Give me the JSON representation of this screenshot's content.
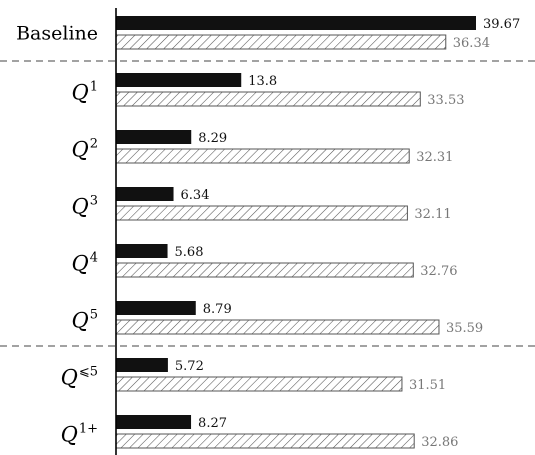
{
  "chart_data": {
    "type": "bar",
    "orientation": "horizontal",
    "categories": [
      {
        "base": "Baseline",
        "sup": ""
      },
      {
        "base": "Q",
        "sup": "1"
      },
      {
        "base": "Q",
        "sup": "2"
      },
      {
        "base": "Q",
        "sup": "3"
      },
      {
        "base": "Q",
        "sup": "4"
      },
      {
        "base": "Q",
        "sup": "5"
      },
      {
        "base": "Q",
        "sup": "⩽5"
      },
      {
        "base": "Q",
        "sup": "1+"
      }
    ],
    "series": [
      {
        "style": "solid",
        "color": "#111111",
        "values": [
          39.67,
          13.8,
          8.29,
          6.34,
          5.68,
          8.79,
          5.72,
          8.27
        ],
        "labels": [
          "39.67",
          "13.8",
          "8.29",
          "6.34",
          "5.68",
          "8.79",
          "5.72",
          "8.27"
        ]
      },
      {
        "style": "hatched",
        "color": "#555555",
        "values": [
          36.34,
          33.53,
          32.31,
          32.11,
          32.76,
          35.59,
          31.51,
          32.86
        ],
        "labels": [
          "36.34",
          "33.53",
          "32.31",
          "32.11",
          "32.76",
          "35.59",
          "31.51",
          "32.86"
        ]
      }
    ],
    "xlim": [
      0,
      39.67
    ],
    "group_separators_after": [
      0,
      5
    ],
    "grid": false,
    "legend": "none"
  }
}
